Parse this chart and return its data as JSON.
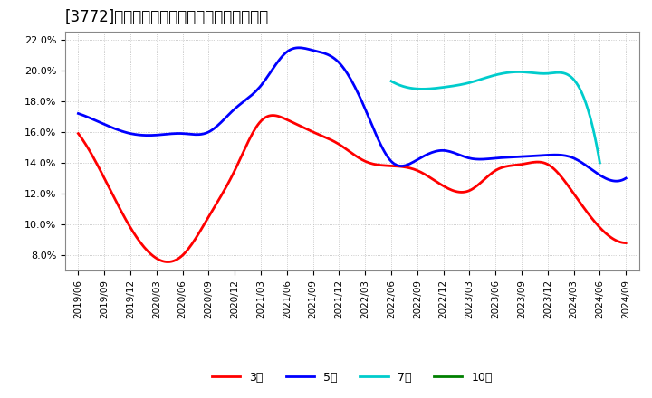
{
  "title": "[3772]　経常利益マージンの標準偏差の推移",
  "x_labels": [
    "2019/06",
    "2019/09",
    "2019/12",
    "2020/03",
    "2020/06",
    "2020/09",
    "2020/12",
    "2021/03",
    "2021/06",
    "2021/09",
    "2021/12",
    "2022/03",
    "2022/06",
    "2022/09",
    "2022/12",
    "2023/03",
    "2023/06",
    "2023/09",
    "2023/12",
    "2024/03",
    "2024/06",
    "2024/09"
  ],
  "series": {
    "3年": {
      "color": "#ff0000",
      "values": [
        15.9,
        13.0,
        9.8,
        7.8,
        8.0,
        10.5,
        13.5,
        16.7,
        16.8,
        16.0,
        15.2,
        14.1,
        13.8,
        13.5,
        12.5,
        12.2,
        13.5,
        13.9,
        13.9,
        12.0,
        9.8,
        8.8
      ]
    },
    "5年": {
      "color": "#0000ff",
      "values": [
        17.2,
        16.5,
        15.9,
        15.8,
        15.9,
        16.0,
        17.5,
        19.0,
        21.2,
        21.3,
        20.5,
        17.5,
        14.1,
        14.2,
        14.8,
        14.3,
        14.3,
        14.4,
        14.5,
        14.3,
        13.2,
        13.0
      ]
    },
    "7年": {
      "color": "#00cccc",
      "values": [
        null,
        null,
        null,
        null,
        null,
        null,
        null,
        null,
        null,
        null,
        null,
        null,
        19.3,
        18.8,
        18.9,
        19.2,
        19.7,
        19.9,
        19.8,
        19.4,
        14.0,
        null
      ]
    },
    "10年": {
      "color": "#008000",
      "values": [
        null,
        null,
        null,
        null,
        null,
        null,
        null,
        null,
        null,
        null,
        null,
        null,
        null,
        null,
        null,
        null,
        null,
        null,
        null,
        null,
        null,
        null
      ]
    }
  },
  "ylim": [
    7.0,
    22.5
  ],
  "yticks": [
    8.0,
    10.0,
    12.0,
    14.0,
    16.0,
    18.0,
    20.0,
    22.0
  ],
  "bg_color": "#ffffff",
  "grid_color": "#aaaaaa",
  "title_fontsize": 12,
  "legend_labels": [
    "3年",
    "5年",
    "7年",
    "10年"
  ],
  "legend_colors": [
    "#ff0000",
    "#0000ff",
    "#00cccc",
    "#008000"
  ]
}
